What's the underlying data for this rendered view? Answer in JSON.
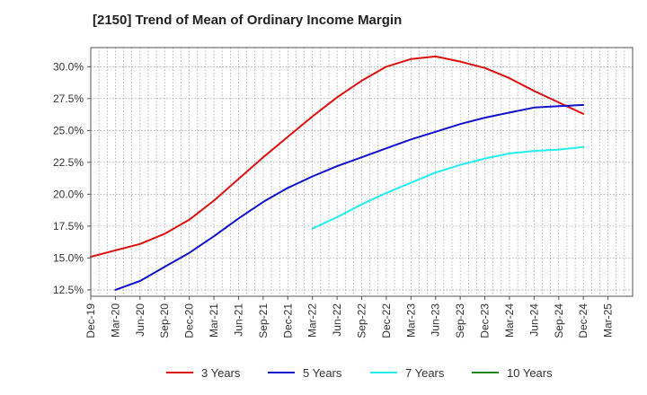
{
  "chart_data": {
    "type": "line",
    "title": "[2150]  Trend of Mean of Ordinary Income Margin",
    "xlabel": "",
    "ylabel": "",
    "ylim": [
      12.0,
      31.5
    ],
    "yticks": [
      12.5,
      15.0,
      17.5,
      20.0,
      22.5,
      25.0,
      27.5,
      30.0
    ],
    "ytick_labels": [
      "12.5%",
      "15.0%",
      "17.5%",
      "20.0%",
      "22.5%",
      "25.0%",
      "27.5%",
      "30.0%"
    ],
    "categories": [
      "Dec-19",
      "Mar-20",
      "Jun-20",
      "Sep-20",
      "Dec-20",
      "Mar-21",
      "Jun-21",
      "Sep-21",
      "Dec-21",
      "Mar-22",
      "Jun-22",
      "Sep-22",
      "Dec-22",
      "Mar-23",
      "Jun-23",
      "Sep-23",
      "Dec-23",
      "Mar-24",
      "Jun-24",
      "Sep-24",
      "Dec-24",
      "Mar-25"
    ],
    "grid": true,
    "legend_position": "bottom",
    "series": [
      {
        "name": "3 Years",
        "color": "#dd1111",
        "values": [
          15.1,
          15.6,
          16.1,
          16.9,
          18.0,
          19.5,
          21.2,
          22.9,
          24.5,
          26.1,
          27.6,
          28.9,
          30.0,
          30.6,
          30.8,
          30.4,
          29.9,
          29.1,
          28.1,
          27.2,
          26.3,
          null
        ]
      },
      {
        "name": "5 Years",
        "color": "#1111cc",
        "values": [
          null,
          12.5,
          13.2,
          14.3,
          15.4,
          16.7,
          18.1,
          19.4,
          20.5,
          21.4,
          22.2,
          22.9,
          23.6,
          24.3,
          24.9,
          25.5,
          26.0,
          26.4,
          26.8,
          26.9,
          27.0,
          null
        ]
      },
      {
        "name": "7 Years",
        "color": "#22eeee",
        "values": [
          null,
          null,
          null,
          null,
          null,
          null,
          null,
          null,
          null,
          17.3,
          18.2,
          19.2,
          20.1,
          20.9,
          21.7,
          22.3,
          22.8,
          23.2,
          23.4,
          23.5,
          23.7,
          null
        ]
      },
      {
        "name": "10 Years",
        "color": "#228822",
        "values": [
          null,
          null,
          null,
          null,
          null,
          null,
          null,
          null,
          null,
          null,
          null,
          null,
          null,
          null,
          null,
          null,
          null,
          null,
          null,
          null,
          null,
          null
        ]
      }
    ]
  }
}
